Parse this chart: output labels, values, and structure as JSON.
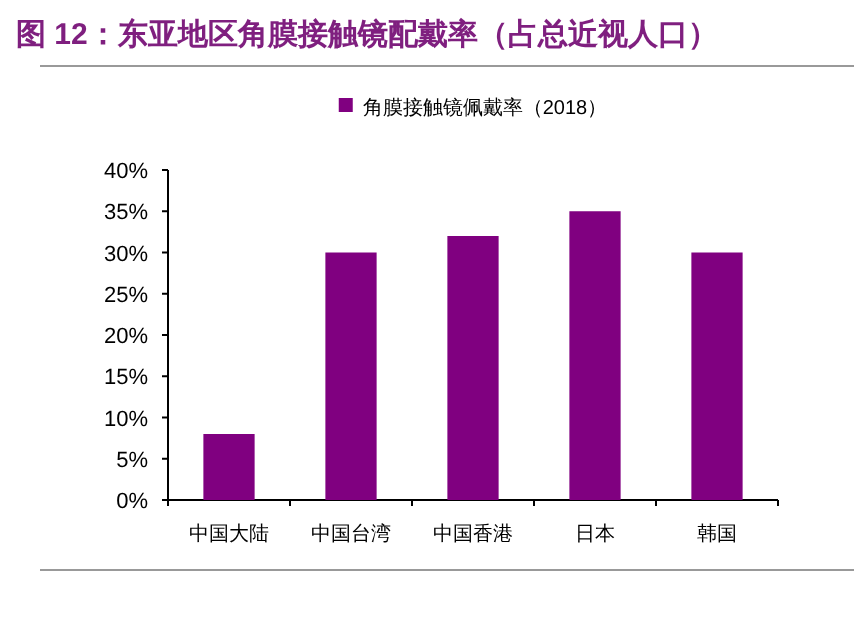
{
  "chart_data": {
    "type": "bar",
    "title": "图 12：东亚地区角膜接触镜配戴率（占总近视人口）",
    "categories": [
      "中国大陆",
      "中国台湾",
      "中国香港",
      "日本",
      "韩国"
    ],
    "series": [
      {
        "name": "角膜接触镜佩戴率（2018）",
        "color": "#800080",
        "values": [
          8,
          30,
          32,
          35,
          30
        ]
      }
    ],
    "ylim": [
      0,
      40
    ],
    "yticks": [
      {
        "value": 0,
        "label": "0%"
      },
      {
        "value": 5,
        "label": "5%"
      },
      {
        "value": 10,
        "label": "10%"
      },
      {
        "value": 15,
        "label": "15%"
      },
      {
        "value": 20,
        "label": "20%"
      },
      {
        "value": 25,
        "label": "25%"
      },
      {
        "value": 30,
        "label": "30%"
      },
      {
        "value": 35,
        "label": "35%"
      },
      {
        "value": 40,
        "label": "40%"
      }
    ],
    "legend": "top",
    "grid": false
  }
}
